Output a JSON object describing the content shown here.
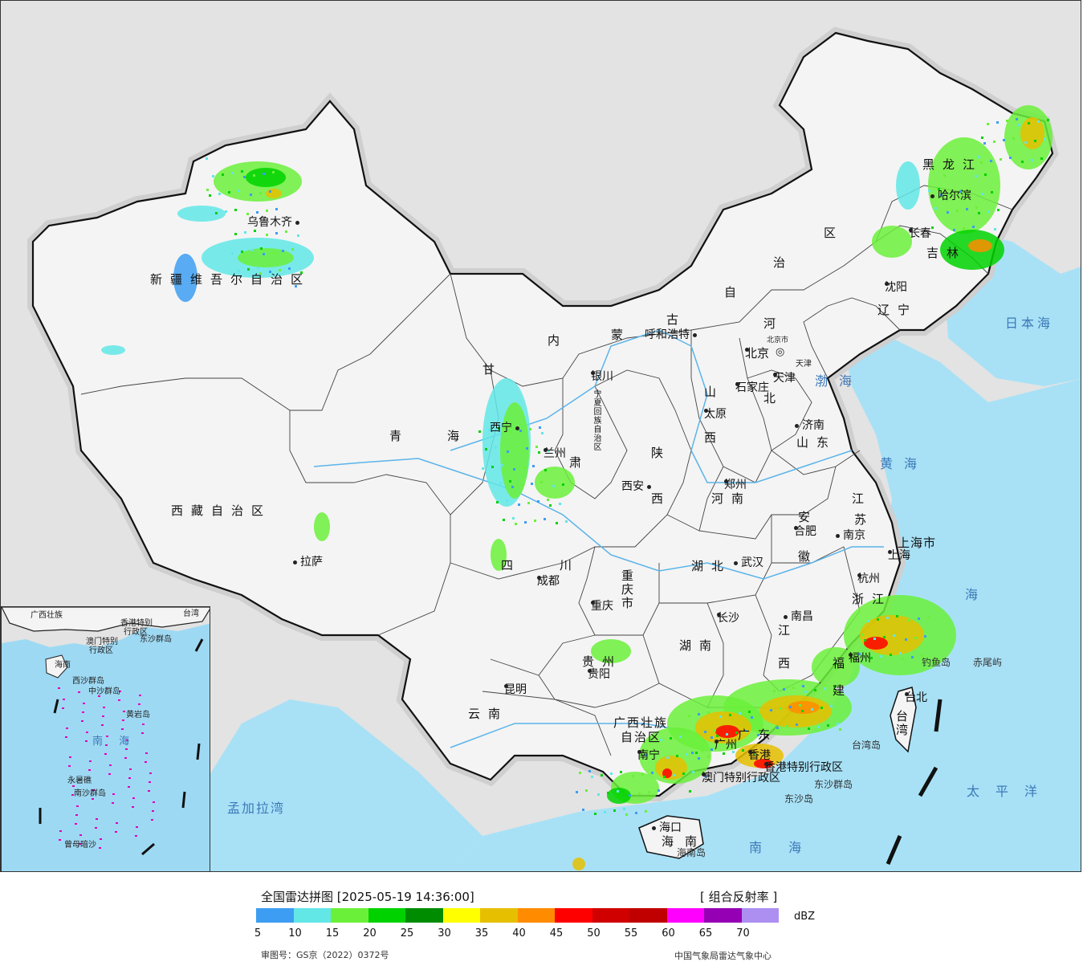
{
  "map": {
    "provinces": {
      "xinjiang": "新疆维吾尔自治区",
      "xizang": "西藏自治区",
      "qinghai_1": "青",
      "qinghai_2": "海",
      "gansu": "甘",
      "gansu_2": "肃",
      "neimenggu_1": "内",
      "neimenggu_2": "蒙",
      "neimenggu_3": "古",
      "neimenggu_4": "自",
      "neimenggu_5": "治",
      "neimenggu_6": "区",
      "heilongjiang": "黑龙江",
      "jilin": "吉林",
      "liaoning": "辽宁",
      "hebei_1": "河",
      "hebei_2": "北",
      "shanxi_1": "山",
      "shanxi_2": "西",
      "shandong": "山东",
      "henan": "河南",
      "shaanxi_1": "陕",
      "shaanxi_2": "西",
      "ningxia": "宁夏回族自治区",
      "sichuan_1": "四",
      "sichuan_2": "川",
      "chongqing": "重庆市",
      "hubei": "湖北",
      "hunan": "湖南",
      "anhui_1": "安",
      "anhui_2": "徽",
      "jiangsu_1": "江",
      "jiangsu_2": "苏",
      "zhejiang": "浙江",
      "jiangxi_1": "江",
      "jiangxi_2": "西",
      "fujian_1": "福",
      "fujian_2": "建",
      "guizhou": "贵州",
      "yunnan": "云南",
      "guangxi_1": "广西壮族",
      "guangxi_2": "自治区",
      "guangdong": "广东",
      "hainan": "海南",
      "taiwan": "台湾",
      "shanghai": "上海市",
      "tianjin": "天津",
      "beijing_small": "北京市"
    },
    "cities": {
      "urumqi": "乌鲁木齐",
      "lhasa": "拉萨",
      "xining": "西宁",
      "lanzhou": "兰州",
      "yinchuan": "银川",
      "hohhot": "呼和浩特",
      "beijing": "北京",
      "tianjin": "天津",
      "shijiazhuang": "石家庄",
      "taiyuan": "太原",
      "jinan": "济南",
      "zhengzhou": "郑州",
      "xian": "西安",
      "chengdu": "成都",
      "chongqing": "重庆",
      "wuhan": "武汉",
      "hefei": "合肥",
      "nanjing": "南京",
      "shanghai": "上海",
      "hangzhou": "杭州",
      "nanchang": "南昌",
      "changsha": "长沙",
      "guiyang": "贵阳",
      "kunming": "昆明",
      "nanning": "南宁",
      "guangzhou": "广州",
      "fuzhou": "福州",
      "taipei": "台北",
      "haikou": "海口",
      "harbin": "哈尔滨",
      "changchun": "长春",
      "shenyang": "沈阳",
      "hongkong": "香港",
      "hk_sar": "香港特别行政区",
      "macau_sar": "澳门特别行政区"
    },
    "seas": {
      "bohai": "渤海",
      "huanghai": "黄海",
      "donghai": "海",
      "nanhai": "南  海",
      "taipingyang": "太平洋",
      "riben": "日本海",
      "mengjiala": "孟加拉湾"
    },
    "islands": {
      "diaoyu": "钓鱼岛",
      "chiwei": "赤尾屿",
      "taiwan_isl": "台湾岛",
      "dongsha_qd": "东沙群岛",
      "dongsha": "东沙岛",
      "hainan_isl": "海南岛"
    }
  },
  "inset": {
    "labels": {
      "l1": "广西壮族",
      "l2": "台湾",
      "l3": "香港特别",
      "l4": "行政区",
      "l5": "澳门特别",
      "l6": "行政区",
      "l7": "东沙群岛",
      "l8": "海南",
      "l9": "西沙群岛",
      "l10": "中沙群岛",
      "l11": "黄岩岛",
      "l12": "南 海",
      "l13": "永暑礁",
      "l14": "南沙群岛",
      "l15": "曾母暗沙"
    }
  },
  "legend": {
    "title": "全国雷达拼图 [2025-05-19 14:36:00]",
    "product": "[ 组合反射率 ]",
    "unit": "dBZ",
    "ticks": [
      "5",
      "10",
      "15",
      "20",
      "25",
      "30",
      "35",
      "40",
      "45",
      "50",
      "55",
      "60",
      "65",
      "70"
    ],
    "colors": [
      "#3d9df2",
      "#62e6e6",
      "#6bf03a",
      "#00d200",
      "#008c00",
      "#ffff00",
      "#e6c000",
      "#ff8c00",
      "#ff0000",
      "#d00000",
      "#c00000",
      "#ff00ff",
      "#9600b4",
      "#ac8ff0"
    ],
    "approval": "审图号：GS京（2022）0372号",
    "source": "中国气象局雷达气象中心"
  }
}
